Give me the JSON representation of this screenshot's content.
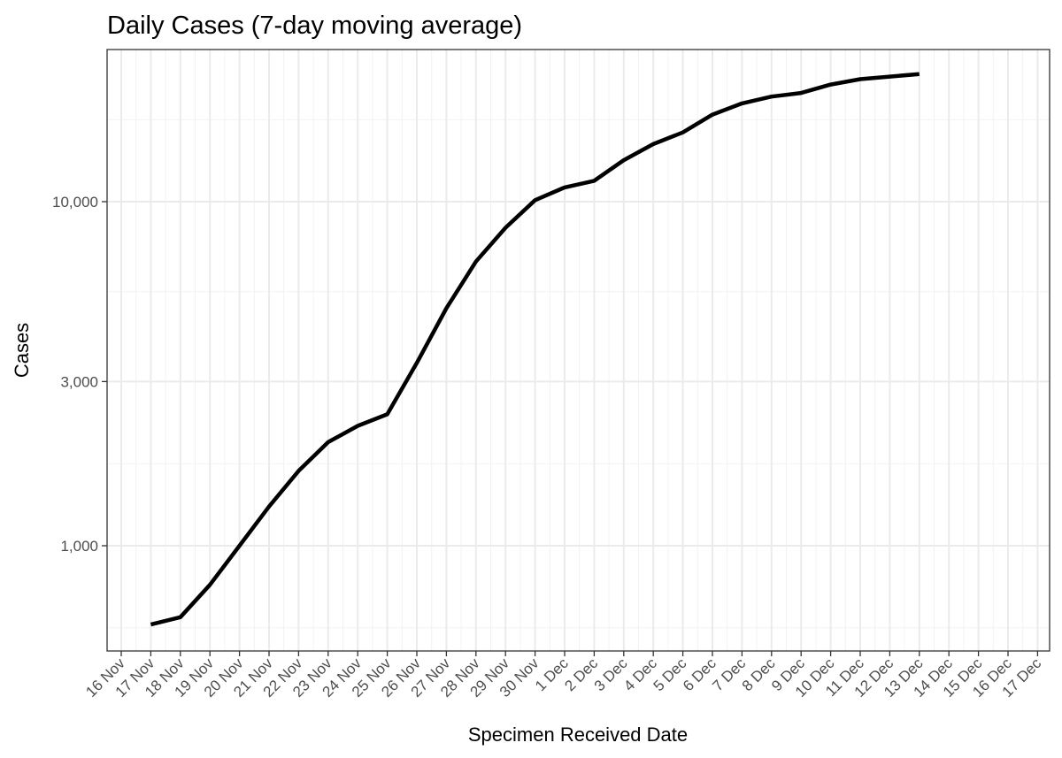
{
  "chart_data": {
    "type": "line",
    "title": "Daily Cases (7-day moving average)",
    "xlabel": "Specimen Received Date",
    "ylabel": "Cases",
    "y_scale": "log",
    "grid": true,
    "x_tick_labels": [
      "16 Nov",
      "17 Nov",
      "18 Nov",
      "19 Nov",
      "20 Nov",
      "21 Nov",
      "22 Nov",
      "23 Nov",
      "24 Nov",
      "25 Nov",
      "26 Nov",
      "27 Nov",
      "28 Nov",
      "29 Nov",
      "30 Nov",
      "1 Dec",
      "2 Dec",
      "3 Dec",
      "4 Dec",
      "5 Dec",
      "6 Dec",
      "7 Dec",
      "8 Dec",
      "9 Dec",
      "10 Dec",
      "11 Dec",
      "12 Dec",
      "13 Dec",
      "14 Dec",
      "15 Dec",
      "16 Dec",
      "17 Dec"
    ],
    "y_ticks": [
      {
        "value": 1000,
        "label": "1,000"
      },
      {
        "value": 3000,
        "label": "3,000"
      },
      {
        "value": 10000,
        "label": "10,000"
      }
    ],
    "series": [
      {
        "x": [
          "17 Nov",
          "18 Nov",
          "19 Nov",
          "20 Nov",
          "21 Nov",
          "22 Nov",
          "23 Nov",
          "24 Nov",
          "25 Nov",
          "26 Nov",
          "27 Nov",
          "28 Nov",
          "29 Nov",
          "30 Nov",
          "1 Dec",
          "2 Dec",
          "3 Dec",
          "4 Dec",
          "5 Dec",
          "6 Dec",
          "7 Dec",
          "8 Dec",
          "9 Dec",
          "10 Dec",
          "11 Dec",
          "12 Dec",
          "13 Dec"
        ],
        "values": [
          590,
          620,
          770,
          1000,
          1300,
          1650,
          2000,
          2230,
          2410,
          3400,
          4900,
          6700,
          8400,
          10100,
          11000,
          11500,
          13200,
          14700,
          15900,
          17900,
          19300,
          20200,
          20700,
          21900,
          22700,
          23100,
          23500
        ]
      }
    ]
  }
}
